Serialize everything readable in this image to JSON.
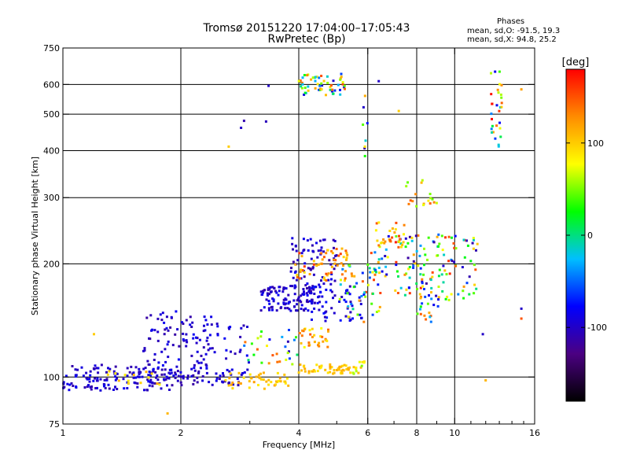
{
  "header": {
    "title": "Tromsø 20151220 17:04:00–17:05:43",
    "subtitle": "RwPretec (Bp)"
  },
  "phases": {
    "label": "Phases",
    "o_stats": "mean, sd,O: -91.5, 19.3",
    "x_stats": "mean, sd,X:  94.8, 25.2"
  },
  "colorbar": {
    "label": "[deg]",
    "ticks": [
      "100",
      "0",
      "-100"
    ],
    "tick_values": [
      100,
      0,
      -100
    ],
    "range": [
      -180,
      180
    ],
    "colors": [
      "#000000",
      "#4b0082",
      "#0000ff",
      "#00bfff",
      "#00ff00",
      "#ffff00",
      "#ff8c00",
      "#ff0000"
    ]
  },
  "chart_data": {
    "type": "scatter",
    "xlabel": "Frequency [MHz]",
    "ylabel": "Stationary phase Virtual Height [km]",
    "xscale": "log",
    "yscale": "log",
    "xlim": [
      1,
      16
    ],
    "ylim": [
      75,
      750
    ],
    "xticks": [
      1,
      2,
      4,
      6,
      8,
      10,
      16
    ],
    "xtick_labels": [
      "1",
      "2",
      "4",
      "6",
      "8",
      "10",
      "16"
    ],
    "yticks": [
      75,
      100,
      200,
      300,
      400,
      500,
      600,
      750
    ],
    "ytick_labels": [
      "75",
      "100",
      "200",
      "300",
      "400",
      "500",
      "600",
      "750"
    ],
    "grid_x": [
      2,
      4,
      6,
      8,
      10
    ],
    "grid_y": [
      100,
      200,
      300,
      400,
      500,
      600
    ],
    "clusters": [
      {
        "x": [
          1.0,
          1.9
        ],
        "y": [
          92,
          108
        ],
        "phase": [
          -115,
          -80
        ],
        "count": 150
      },
      {
        "x": [
          1.3,
          1.8
        ],
        "y": [
          94,
          104
        ],
        "phase": [
          80,
          120
        ],
        "count": 14
      },
      {
        "x": [
          1.6,
          2.4
        ],
        "y": [
          105,
          150
        ],
        "phase": [
          -115,
          -80
        ],
        "count": 90
      },
      {
        "x": [
          1.9,
          3.0
        ],
        "y": [
          95,
          105
        ],
        "phase": [
          -115,
          -85
        ],
        "count": 55
      },
      {
        "x": [
          2.6,
          3.8
        ],
        "y": [
          93,
          103
        ],
        "phase": [
          85,
          125
        ],
        "count": 45
      },
      {
        "x": [
          2.3,
          3.0
        ],
        "y": [
          105,
          140
        ],
        "phase": [
          -110,
          -80
        ],
        "count": 25
      },
      {
        "x": [
          2.9,
          4.0
        ],
        "y": [
          108,
          135
        ],
        "phase": [
          -110,
          160
        ],
        "count": 30
      },
      {
        "x": [
          3.2,
          4.6
        ],
        "y": [
          150,
          175
        ],
        "phase": [
          -115,
          -80
        ],
        "count": 120
      },
      {
        "x": [
          3.8,
          5.0
        ],
        "y": [
          175,
          235
        ],
        "phase": [
          -115,
          -80
        ],
        "count": 70
      },
      {
        "x": [
          3.9,
          5.5
        ],
        "y": [
          180,
          220
        ],
        "phase": [
          90,
          160
        ],
        "count": 55
      },
      {
        "x": [
          4.0,
          5.6
        ],
        "y": [
          102,
          108
        ],
        "phase": [
          85,
          120
        ],
        "count": 50
      },
      {
        "x": [
          5.5,
          6.0
        ],
        "y": [
          102,
          110
        ],
        "phase": [
          40,
          110
        ],
        "count": 12
      },
      {
        "x": [
          4.0,
          4.8
        ],
        "y": [
          120,
          135
        ],
        "phase": [
          70,
          150
        ],
        "count": 30
      },
      {
        "x": [
          4.2,
          5.8
        ],
        "y": [
          140,
          175
        ],
        "phase": [
          -110,
          -70
        ],
        "count": 55
      },
      {
        "x": [
          5.0,
          6.5
        ],
        "y": [
          140,
          200
        ],
        "phase": [
          -80,
          160
        ],
        "count": 45
      },
      {
        "x": [
          6.0,
          11.5
        ],
        "y": [
          160,
          240
        ],
        "phase": [
          -120,
          170
        ],
        "count": 150
      },
      {
        "x": [
          6.3,
          7.5
        ],
        "y": [
          220,
          260
        ],
        "phase": [
          80,
          160
        ],
        "count": 25
      },
      {
        "x": [
          7.5,
          9.0
        ],
        "y": [
          280,
          335
        ],
        "phase": [
          40,
          150
        ],
        "count": 18
      },
      {
        "x": [
          8.0,
          9.2
        ],
        "y": [
          140,
          190
        ],
        "phase": [
          -100,
          160
        ],
        "count": 25
      },
      {
        "x": [
          4.0,
          5.3
        ],
        "y": [
          560,
          640
        ],
        "phase": [
          -110,
          160
        ],
        "count": 60
      },
      {
        "x": [
          12.3,
          13.2
        ],
        "y": [
          410,
          650
        ],
        "phase": [
          -100,
          180
        ],
        "count": 30
      },
      {
        "x": [
          5.8,
          6.0
        ],
        "y": [
          360,
          560
        ],
        "phase": [
          -120,
          150
        ],
        "count": 8
      }
    ],
    "points": [
      [
        3.35,
        595,
        -100
      ],
      [
        2.9,
        480,
        -110
      ],
      [
        2.85,
        460,
        -100
      ],
      [
        2.65,
        410,
        100
      ],
      [
        3.3,
        478,
        -105
      ],
      [
        6.4,
        612,
        -100
      ],
      [
        7.2,
        510,
        100
      ],
      [
        14.8,
        582,
        120
      ],
      [
        1.85,
        80,
        110
      ],
      [
        1.2,
        130,
        100
      ],
      [
        14.8,
        152,
        -100
      ],
      [
        14.8,
        143,
        150
      ],
      [
        12.0,
        98,
        110
      ],
      [
        11.8,
        130,
        -100
      ]
    ]
  }
}
